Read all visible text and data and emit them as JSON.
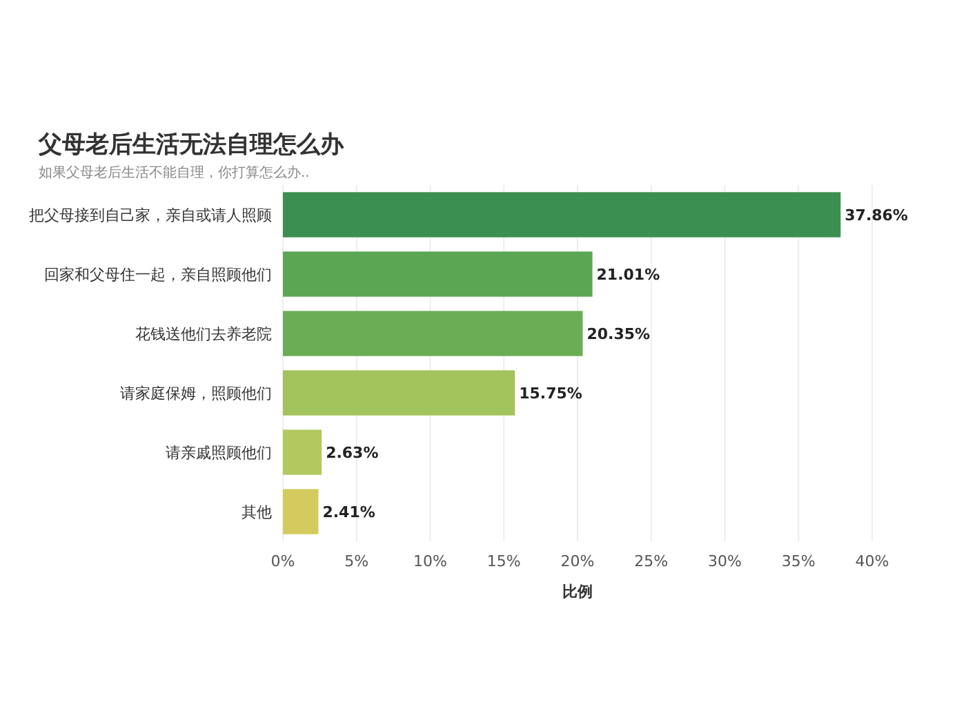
{
  "chart_data": {
    "type": "bar",
    "orientation": "horizontal",
    "title": "父母老后生活无法自理怎么办",
    "subtitle": "如果父母老后生活不能自理，你打算怎么办..",
    "xlabel": "比例",
    "categories": [
      "把父母接到自己家，亲自或请人照顾",
      "回家和父母住一起，亲自照顾他们",
      "花钱送他们去养老院",
      "请家庭保姆，照顾他们",
      "请亲戚照顾他们",
      "其他"
    ],
    "values": [
      37.86,
      21.01,
      20.35,
      15.75,
      2.63,
      2.41
    ],
    "value_labels": [
      "37.86%",
      "21.01%",
      "20.35%",
      "15.75%",
      "2.63%",
      "2.41%"
    ],
    "colors": [
      "#3b8f50",
      "#5aa653",
      "#6aad55",
      "#a3c35c",
      "#b3c85e",
      "#d3cb5e"
    ],
    "xlim": [
      0,
      40
    ],
    "xticks": [
      {
        "value": 0,
        "label": "0%"
      },
      {
        "value": 5,
        "label": "5%"
      },
      {
        "value": 10,
        "label": "10%"
      },
      {
        "value": 15,
        "label": "15%"
      },
      {
        "value": 20,
        "label": "20%"
      },
      {
        "value": 25,
        "label": "25%"
      },
      {
        "value": 30,
        "label": "30%"
      },
      {
        "value": 35,
        "label": "35%"
      },
      {
        "value": 40,
        "label": "40%"
      }
    ],
    "grid": "x"
  }
}
